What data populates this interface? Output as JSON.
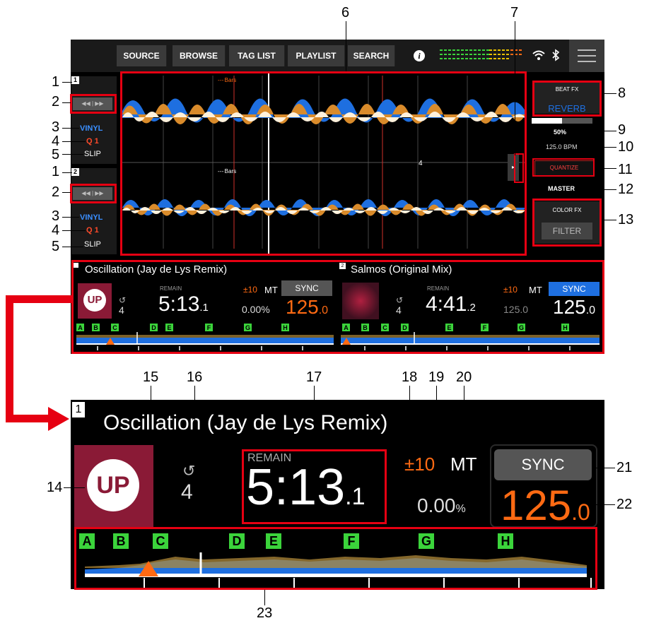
{
  "topbar": {
    "buttons": [
      "SOURCE",
      "BROWSE",
      "TAG LIST",
      "PLAYLIST",
      "SEARCH"
    ]
  },
  "decks": [
    {
      "num": "1",
      "vinyl": "VINYL",
      "quant": "Q 1",
      "slip": "SLIP",
      "bars": "Bars"
    },
    {
      "num": "2",
      "vinyl": "VINYL",
      "quant": "Q 1",
      "slip": "SLIP",
      "bars": "Bars"
    }
  ],
  "wave_marker": "4",
  "right_panel": {
    "beat_fx": "BEAT FX",
    "reverb": "REVERB",
    "percent": "50%",
    "bpm": "125.0 BPM",
    "quantize": "QUANTIZE",
    "master": "MASTER",
    "color_fx": "COLOR FX",
    "filter": "FILTER"
  },
  "deck_info": [
    {
      "num": "1",
      "title": "Oscillation (Jay de Lys Remix)",
      "remain": "REMAIN",
      "time_main": "5:13",
      "time_frac": ".1",
      "loop": "4",
      "range": "±10",
      "mt": "MT",
      "tempo": "0.00%",
      "sync": "SYNC",
      "bpm_main": "125",
      "bpm_frac": ".0",
      "hot_cues": [
        "A",
        "B",
        "C",
        "D",
        "E",
        "F",
        "G",
        "H"
      ]
    },
    {
      "num": "2",
      "title": "Salmos (Original Mix)",
      "remain": "REMAIN",
      "time_main": "4:41",
      "time_frac": ".2",
      "loop": "4",
      "range": "±10",
      "mt": "MT",
      "tempo": "125.0",
      "sync": "SYNC",
      "bpm_main": "125",
      "bpm_frac": ".0",
      "hot_cues": [
        "A",
        "B",
        "C",
        "D",
        "E",
        "F",
        "G",
        "H"
      ]
    }
  ],
  "zoom": {
    "num": "1",
    "title": "Oscillation (Jay de Lys Remix)",
    "remain": "REMAIN",
    "time_main": "5:13",
    "time_frac": ".1",
    "loop": "4",
    "range": "±10",
    "mt": "MT",
    "tempo_value": "0.00",
    "tempo_unit": "%",
    "sync": "SYNC",
    "bpm_main": "125",
    "bpm_frac": ".0",
    "hot_cues": [
      "A",
      "B",
      "C",
      "D",
      "E",
      "F",
      "G",
      "H"
    ]
  },
  "callouts": [
    "1",
    "2",
    "3",
    "4",
    "5",
    "1",
    "2",
    "3",
    "4",
    "5",
    "6",
    "7",
    "8",
    "9",
    "10",
    "11",
    "12",
    "13",
    "14",
    "15",
    "16",
    "17",
    "18",
    "19",
    "20",
    "21",
    "22",
    "23"
  ],
  "colors": {
    "callout_red": "#e60012",
    "sync_blue": "#1e6fe0",
    "bpm_orange": "#ff6a13",
    "hotcue_green": "#3bd43b",
    "vinyl_blue": "#3a8fff",
    "waveform_blue": "#1e6fe0",
    "waveform_orange": "#d98b2b"
  }
}
